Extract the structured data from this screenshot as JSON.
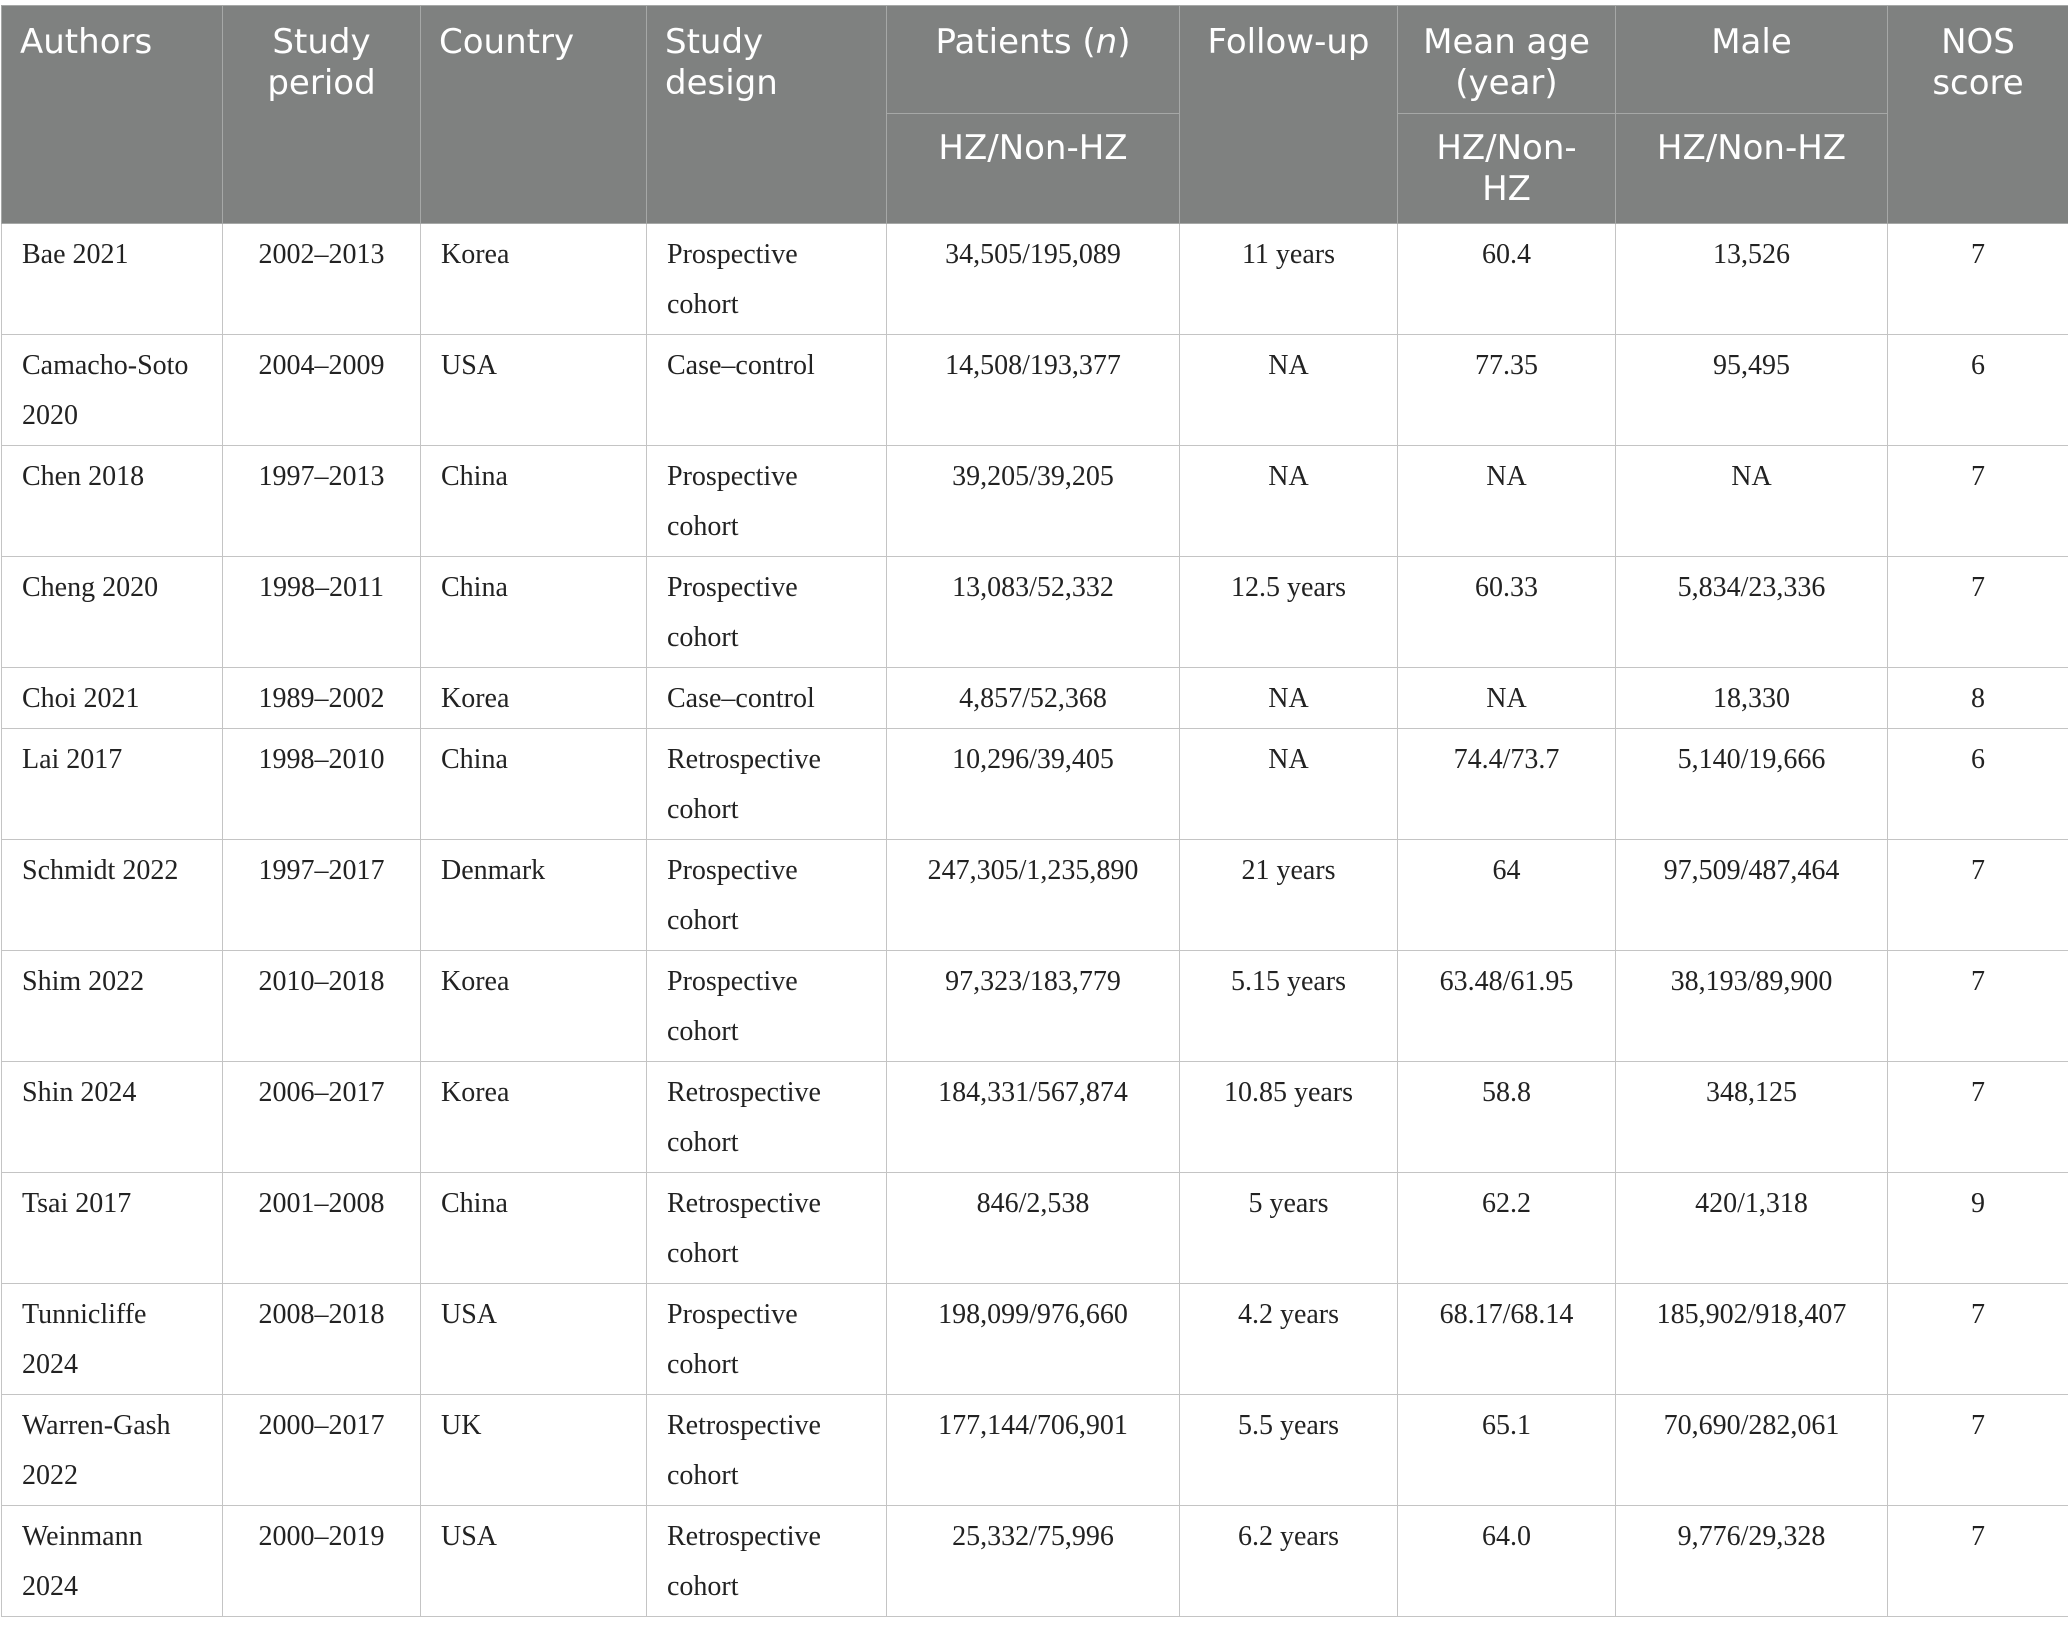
{
  "header": {
    "authors": "Authors",
    "study_period": "Study period",
    "country": "Country",
    "study_design": "Study design",
    "patients_prefix": "Patients (",
    "patients_n": "n",
    "patients_suffix": ")",
    "follow_up": "Follow-up",
    "mean_age": "Mean age (year)",
    "male": "Male",
    "nos_score": "NOS score",
    "sub_patients": "HZ/Non-HZ",
    "sub_mean_age": "HZ/Non-HZ",
    "sub_male": "HZ/Non-HZ"
  },
  "rows": [
    {
      "authors": "Bae 2021",
      "period": "2002–2013",
      "country": "Korea",
      "design": "Prospective cohort",
      "patients": "34,505/195,089",
      "follow_up": "11 years",
      "mean_age": "60.4",
      "male": "13,526",
      "nos": "7"
    },
    {
      "authors": "Camacho-Soto 2020",
      "period": "2004–2009",
      "country": "USA",
      "design": "Case–control",
      "patients": "14,508/193,377",
      "follow_up": "NA",
      "mean_age": "77.35",
      "male": "95,495",
      "nos": "6"
    },
    {
      "authors": "Chen 2018",
      "period": "1997–2013",
      "country": "China",
      "design": "Prospective cohort",
      "patients": "39,205/39,205",
      "follow_up": "NA",
      "mean_age": "NA",
      "male": "NA",
      "nos": "7"
    },
    {
      "authors": "Cheng 2020",
      "period": "1998–2011",
      "country": "China",
      "design": "Prospective cohort",
      "patients": "13,083/52,332",
      "follow_up": "12.5 years",
      "mean_age": "60.33",
      "male": "5,834/23,336",
      "nos": "7"
    },
    {
      "authors": "Choi 2021",
      "period": "1989–2002",
      "country": "Korea",
      "design": "Case–control",
      "patients": "4,857/52,368",
      "follow_up": "NA",
      "mean_age": "NA",
      "male": "18,330",
      "nos": "8"
    },
    {
      "authors": "Lai 2017",
      "period": "1998–2010",
      "country": "China",
      "design": "Retrospective cohort",
      "patients": "10,296/39,405",
      "follow_up": "NA",
      "mean_age": "74.4/73.7",
      "male": "5,140/19,666",
      "nos": "6"
    },
    {
      "authors": "Schmidt 2022",
      "period": "1997–2017",
      "country": "Denmark",
      "design": "Prospective cohort",
      "patients": "247,305/1,235,890",
      "follow_up": "21 years",
      "mean_age": "64",
      "male": "97,509/487,464",
      "nos": "7"
    },
    {
      "authors": "Shim 2022",
      "period": "2010–2018",
      "country": "Korea",
      "design": "Prospective cohort",
      "patients": "97,323/183,779",
      "follow_up": "5.15 years",
      "mean_age": "63.48/61.95",
      "male": "38,193/89,900",
      "nos": "7"
    },
    {
      "authors": "Shin 2024",
      "period": "2006–2017",
      "country": "Korea",
      "design": "Retrospective cohort",
      "patients": "184,331/567,874",
      "follow_up": "10.85 years",
      "mean_age": "58.8",
      "male": "348,125",
      "nos": "7"
    },
    {
      "authors": "Tsai 2017",
      "period": "2001–2008",
      "country": "China",
      "design": "Retrospective cohort",
      "patients": "846/2,538",
      "follow_up": "5 years",
      "mean_age": "62.2",
      "male": "420/1,318",
      "nos": "9"
    },
    {
      "authors": "Tunnicliffe 2024",
      "period": "2008–2018",
      "country": "USA",
      "design": "Prospective cohort",
      "patients": "198,099/976,660",
      "follow_up": "4.2 years",
      "mean_age": "68.17/68.14",
      "male": "185,902/918,407",
      "nos": "7"
    },
    {
      "authors": "Warren-Gash 2022",
      "period": "2000–2017",
      "country": "UK",
      "design": "Retrospective cohort",
      "patients": "177,144/706,901",
      "follow_up": "5.5 years",
      "mean_age": "65.1",
      "male": "70,690/282,061",
      "nos": "7"
    },
    {
      "authors": "Weinmann 2024",
      "period": "2000–2019",
      "country": "USA",
      "design": "Retrospective cohort",
      "patients": "25,332/75,996",
      "follow_up": "6.2 years",
      "mean_age": "64.0",
      "male": "9,776/29,328",
      "nos": "7"
    }
  ]
}
